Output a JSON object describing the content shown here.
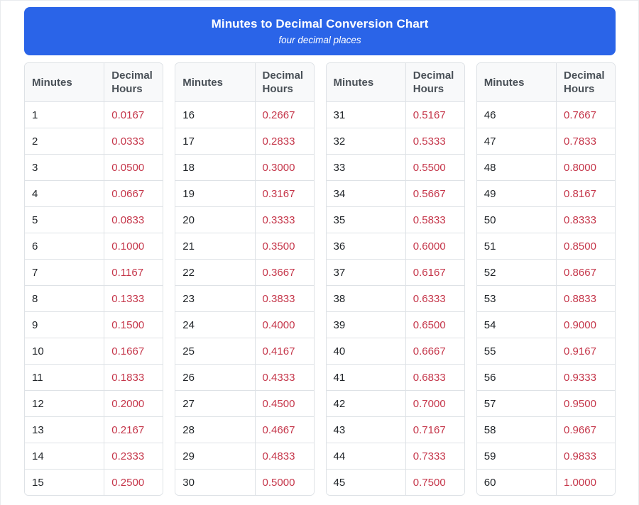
{
  "page": {
    "header": {
      "title": "Minutes to Decimal Conversion Chart",
      "subtitle": "four decimal places"
    },
    "columns": [
      "Minutes",
      "Decimal Hours"
    ],
    "tables": [
      {
        "rows": [
          [
            "1",
            "0.0167"
          ],
          [
            "2",
            "0.0333"
          ],
          [
            "3",
            "0.0500"
          ],
          [
            "4",
            "0.0667"
          ],
          [
            "5",
            "0.0833"
          ],
          [
            "6",
            "0.1000"
          ],
          [
            "7",
            "0.1167"
          ],
          [
            "8",
            "0.1333"
          ],
          [
            "9",
            "0.1500"
          ],
          [
            "10",
            "0.1667"
          ],
          [
            "11",
            "0.1833"
          ],
          [
            "12",
            "0.2000"
          ],
          [
            "13",
            "0.2167"
          ],
          [
            "14",
            "0.2333"
          ],
          [
            "15",
            "0.2500"
          ]
        ]
      },
      {
        "rows": [
          [
            "16",
            "0.2667"
          ],
          [
            "17",
            "0.2833"
          ],
          [
            "18",
            "0.3000"
          ],
          [
            "19",
            "0.3167"
          ],
          [
            "20",
            "0.3333"
          ],
          [
            "21",
            "0.3500"
          ],
          [
            "22",
            "0.3667"
          ],
          [
            "23",
            "0.3833"
          ],
          [
            "24",
            "0.4000"
          ],
          [
            "25",
            "0.4167"
          ],
          [
            "26",
            "0.4333"
          ],
          [
            "27",
            "0.4500"
          ],
          [
            "28",
            "0.4667"
          ],
          [
            "29",
            "0.4833"
          ],
          [
            "30",
            "0.5000"
          ]
        ]
      },
      {
        "rows": [
          [
            "31",
            "0.5167"
          ],
          [
            "32",
            "0.5333"
          ],
          [
            "33",
            "0.5500"
          ],
          [
            "34",
            "0.5667"
          ],
          [
            "35",
            "0.5833"
          ],
          [
            "36",
            "0.6000"
          ],
          [
            "37",
            "0.6167"
          ],
          [
            "38",
            "0.6333"
          ],
          [
            "39",
            "0.6500"
          ],
          [
            "40",
            "0.6667"
          ],
          [
            "41",
            "0.6833"
          ],
          [
            "42",
            "0.7000"
          ],
          [
            "43",
            "0.7167"
          ],
          [
            "44",
            "0.7333"
          ],
          [
            "45",
            "0.7500"
          ]
        ]
      },
      {
        "rows": [
          [
            "46",
            "0.7667"
          ],
          [
            "47",
            "0.7833"
          ],
          [
            "48",
            "0.8000"
          ],
          [
            "49",
            "0.8167"
          ],
          [
            "50",
            "0.8333"
          ],
          [
            "51",
            "0.8500"
          ],
          [
            "52",
            "0.8667"
          ],
          [
            "53",
            "0.8833"
          ],
          [
            "54",
            "0.9000"
          ],
          [
            "55",
            "0.9167"
          ],
          [
            "56",
            "0.9333"
          ],
          [
            "57",
            "0.9500"
          ],
          [
            "58",
            "0.9667"
          ],
          [
            "59",
            "0.9833"
          ],
          [
            "60",
            "1.0000"
          ]
        ]
      }
    ],
    "colors": {
      "banner_blue": "#2a64e8",
      "decimal_text": "#c5364a",
      "minutes_text": "#212529",
      "header_bg": "#f8f9fa",
      "header_text": "#495057",
      "border": "#dee2e6",
      "frame": "#e9ebee"
    }
  }
}
